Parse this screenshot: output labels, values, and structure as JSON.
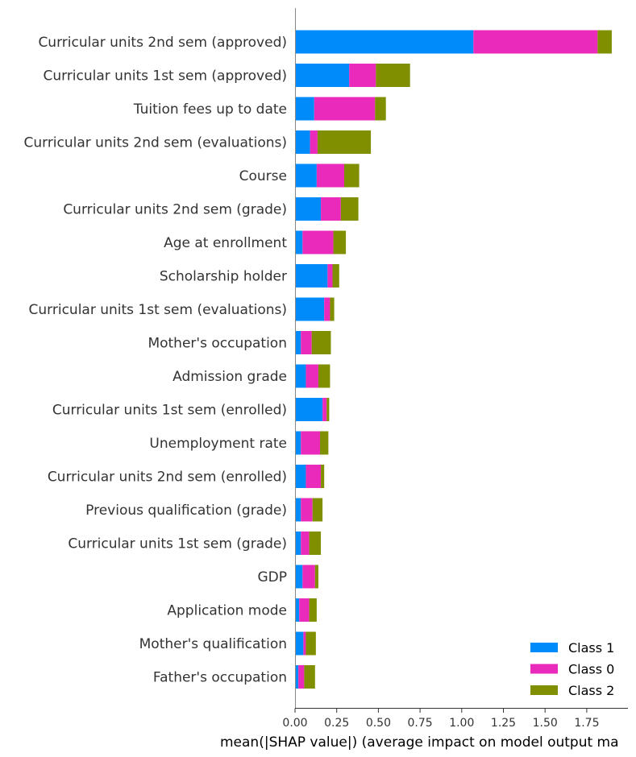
{
  "chart_data": {
    "type": "bar",
    "orientation": "horizontal",
    "stacked": true,
    "xlabel": "mean(|SHAP value|) (average impact on model output ma",
    "xlim": [
      0,
      1.95
    ],
    "xticks": [
      "0.00",
      "0.25",
      "0.50",
      "0.75",
      "1.00",
      "1.25",
      "1.50",
      "1.75"
    ],
    "grid": false,
    "legend_position": "bottom-right",
    "categories": [
      "Curricular units 2nd sem (approved)",
      "Curricular units 1st sem (approved)",
      "Tuition fees up to date",
      "Curricular units 2nd sem (evaluations)",
      "Course",
      "Curricular units 2nd sem (grade)",
      "Age at enrollment",
      "Scholarship holder",
      "Curricular units 1st sem (evaluations)",
      "Mother's occupation",
      "Admission grade",
      "Curricular units 1st sem (enrolled)",
      "Unemployment rate",
      "Curricular units 2nd sem (enrolled)",
      "Previous qualification (grade)",
      "Curricular units 1st sem (grade)",
      "GDP",
      "Application mode",
      "Mother's qualification",
      "Father's occupation"
    ],
    "series": [
      {
        "name": "Class 1",
        "color": "#008bfb",
        "values": [
          1.07,
          0.325,
          0.115,
          0.09,
          0.13,
          0.155,
          0.045,
          0.195,
          0.175,
          0.035,
          0.065,
          0.165,
          0.035,
          0.065,
          0.035,
          0.035,
          0.045,
          0.025,
          0.05,
          0.02
        ]
      },
      {
        "name": "Class 0",
        "color": "#ea2aba",
        "values": [
          0.745,
          0.16,
          0.365,
          0.045,
          0.165,
          0.12,
          0.185,
          0.03,
          0.035,
          0.065,
          0.075,
          0.025,
          0.115,
          0.09,
          0.07,
          0.05,
          0.075,
          0.06,
          0.015,
          0.035
        ]
      },
      {
        "name": "Class 2",
        "color": "#7f8f00",
        "values": [
          0.085,
          0.205,
          0.065,
          0.32,
          0.09,
          0.105,
          0.075,
          0.04,
          0.025,
          0.115,
          0.07,
          0.015,
          0.05,
          0.02,
          0.06,
          0.07,
          0.02,
          0.045,
          0.06,
          0.065
        ]
      }
    ]
  },
  "legend": {
    "order": [
      "Class 1",
      "Class 0",
      "Class 2"
    ]
  }
}
